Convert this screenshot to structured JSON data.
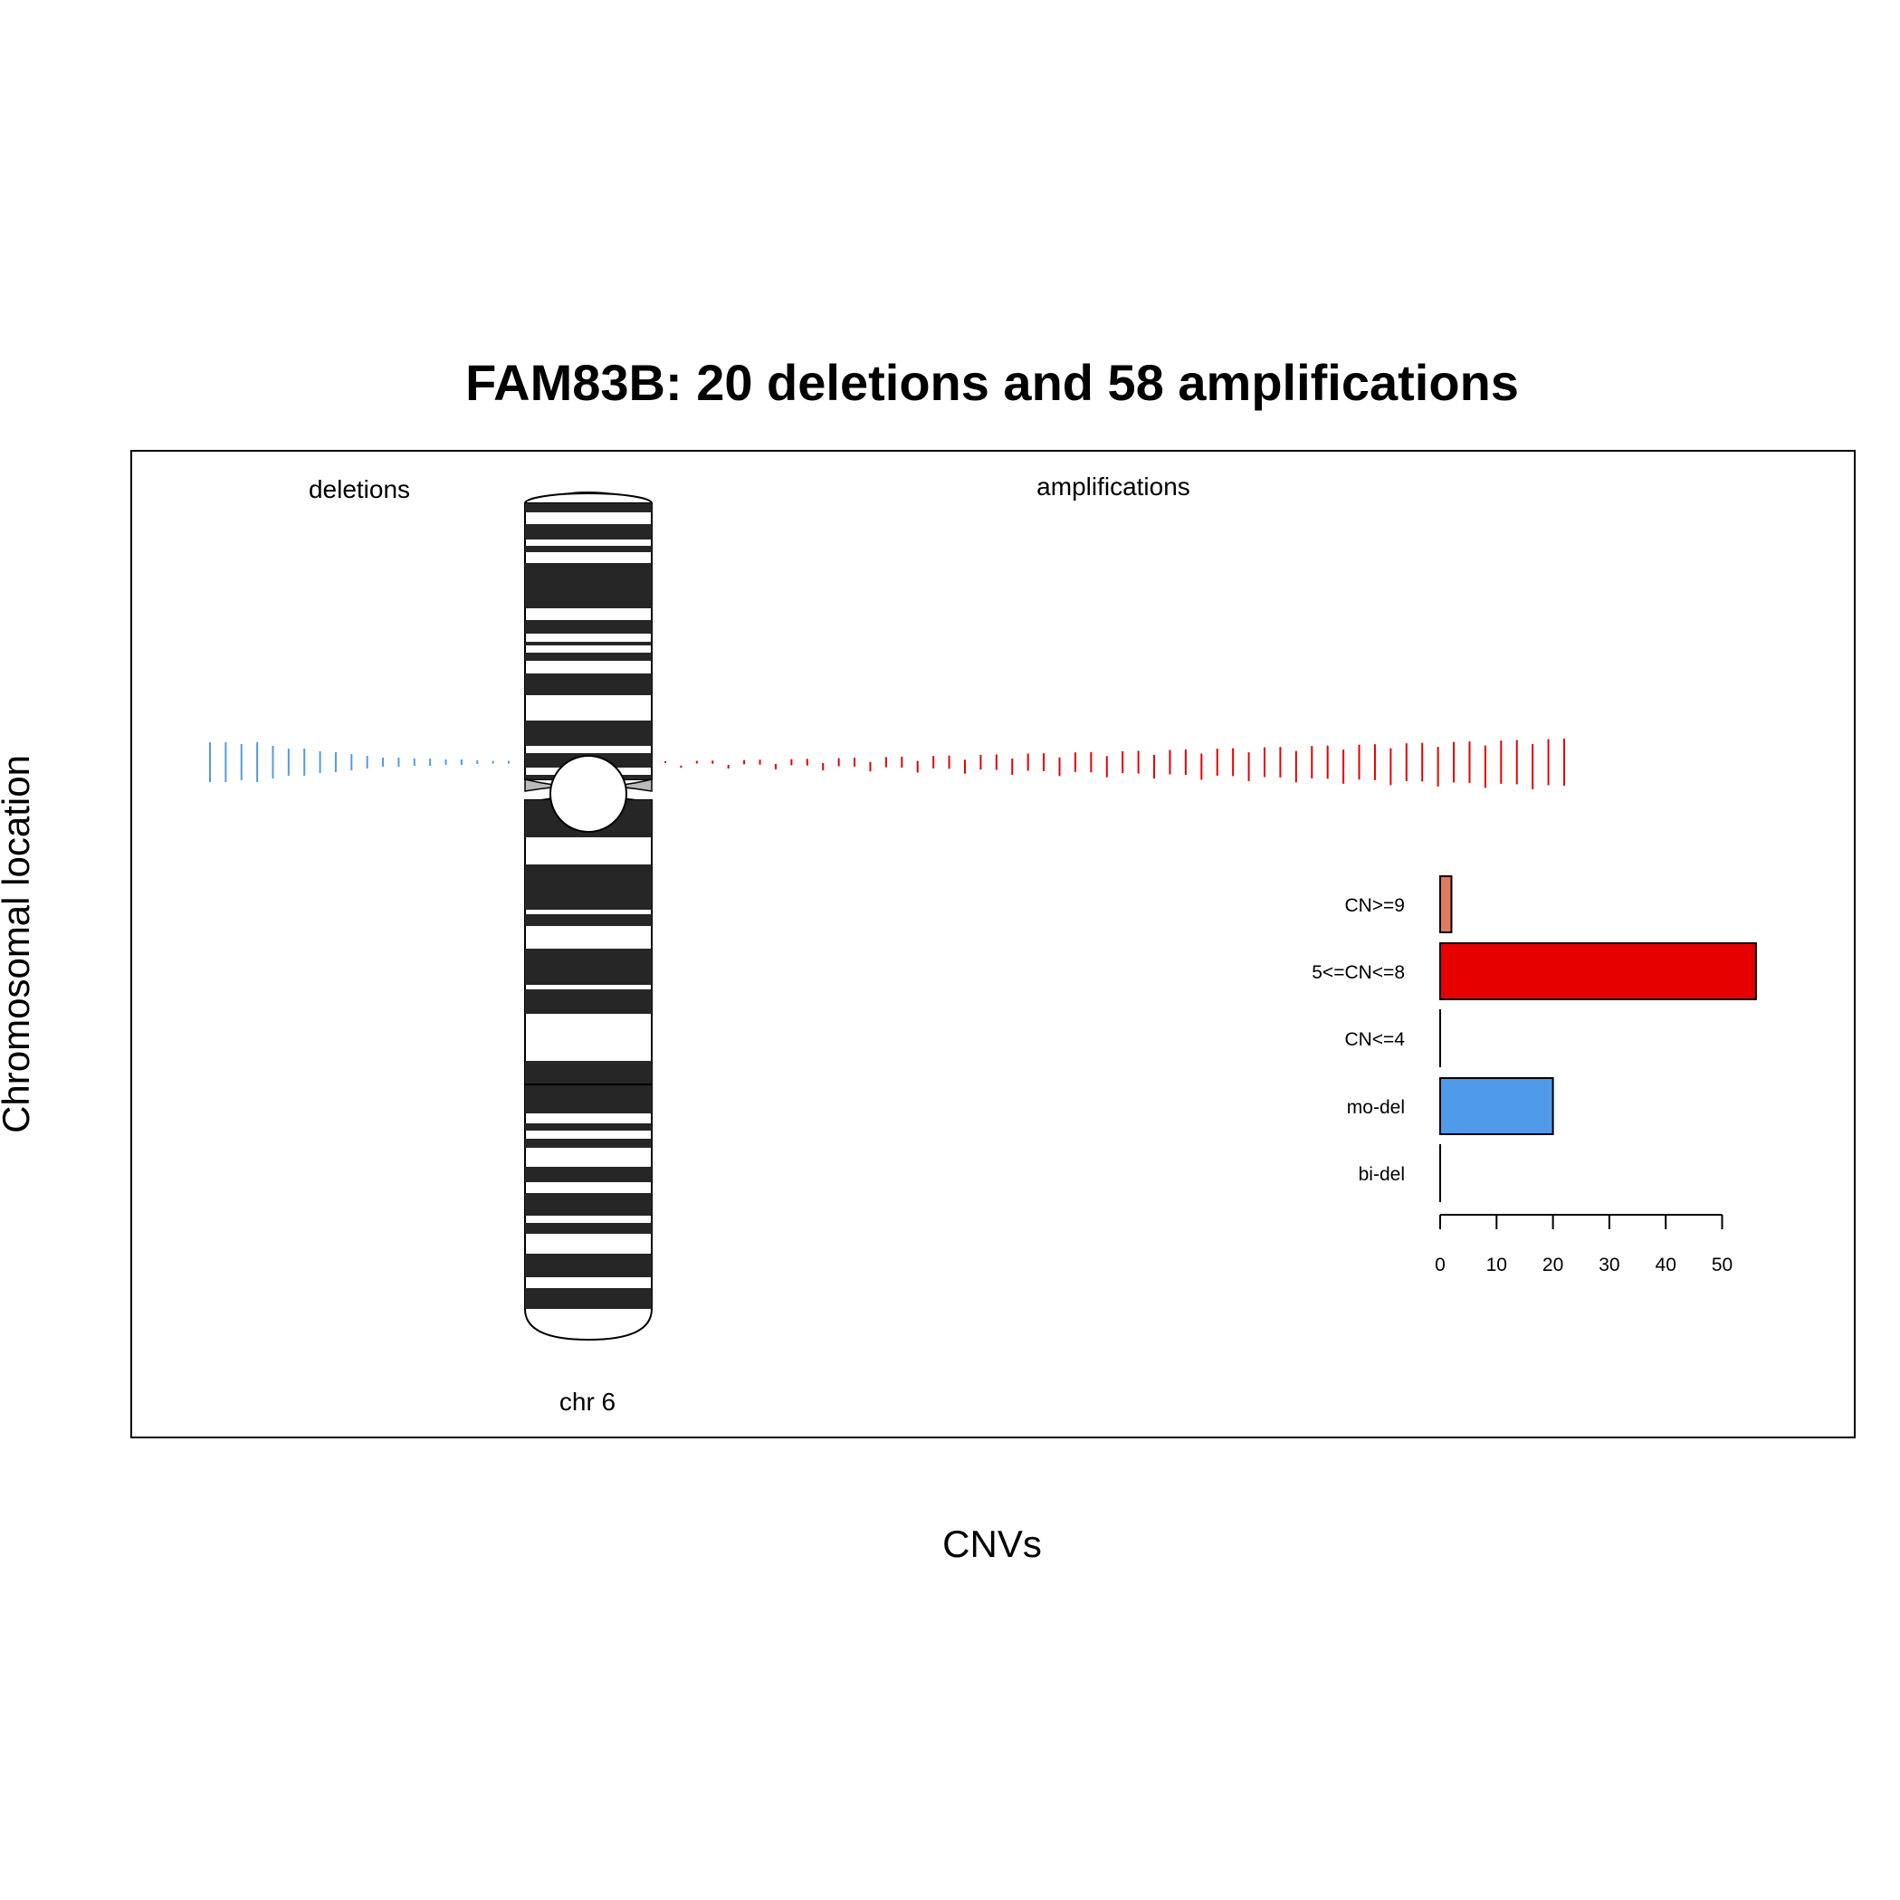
{
  "chart_data": {
    "type": "bar",
    "title": "FAM83B: 20 deletions and 58 amplifications",
    "xlabel": "CNVs",
    "ylabel": "Chromosomal location",
    "chromosome_label": "chr 6",
    "panel_labels": {
      "deletions": "deletions",
      "amplifications": "amplifications"
    },
    "colors": {
      "deletion": "#4f9be9",
      "amplification": "#e60000",
      "cn_ge_9": "#e07b61",
      "cn_5_8": "#e60000",
      "cn_le_4": "#ffffff",
      "mo_del": "#4f9be9",
      "bi_del": "#4f9be9",
      "band_dark": "#262626",
      "band_light": "#ffffff"
    },
    "categories": [
      "CN>=9",
      "5<=CN<=8",
      "CN<=4",
      "mo-del",
      "bi-del"
    ],
    "values": [
      2,
      56,
      0,
      20,
      0
    ],
    "xlim": [
      0,
      56
    ],
    "ticks": [
      0,
      10,
      20,
      30,
      40,
      50
    ],
    "deletion_count": 20,
    "amplification_count": 58
  }
}
